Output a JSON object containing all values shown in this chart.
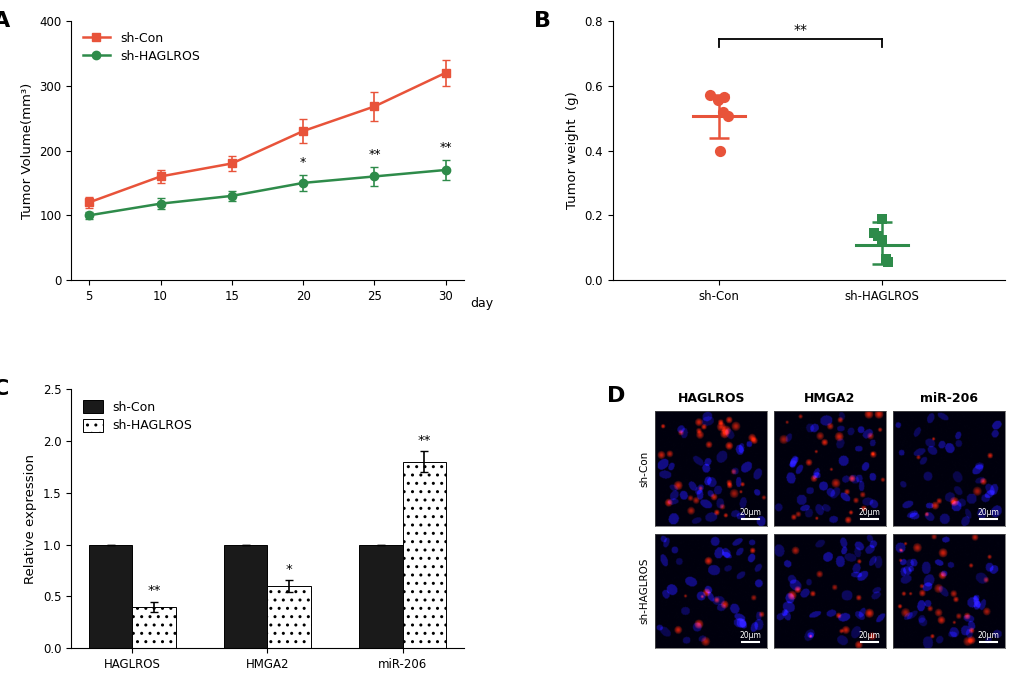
{
  "panel_A": {
    "days": [
      5,
      10,
      15,
      20,
      25,
      30
    ],
    "sh_con_mean": [
      120,
      160,
      180,
      230,
      268,
      320
    ],
    "sh_con_err": [
      8,
      10,
      12,
      18,
      22,
      20
    ],
    "sh_haglros_mean": [
      100,
      118,
      130,
      150,
      160,
      170
    ],
    "sh_haglros_err": [
      5,
      8,
      8,
      12,
      14,
      15
    ],
    "sig_days": [
      20,
      25,
      30
    ],
    "sig_labels": [
      "*",
      "**",
      "**"
    ],
    "ylabel": "Tumor Volume(mm³)",
    "ylim": [
      0,
      400
    ],
    "yticks": [
      0,
      100,
      200,
      300,
      400
    ],
    "color_con": "#E8533A",
    "color_haglros": "#2E8B4A",
    "legend_con": "sh-Con",
    "legend_haglros": "sh-HAGLROS"
  },
  "panel_B": {
    "sh_con_points": [
      0.57,
      0.565,
      0.555,
      0.52,
      0.505,
      0.4
    ],
    "sh_con_mean": 0.505,
    "sh_con_sem_lo": 0.065,
    "sh_con_sem_hi": 0.065,
    "sh_haglros_points": [
      0.19,
      0.145,
      0.135,
      0.125,
      0.065,
      0.055
    ],
    "sh_haglros_mean": 0.108,
    "sh_haglros_sem_lo": 0.058,
    "sh_haglros_sem_hi": 0.072,
    "ylabel": "Tumor weight  (g)",
    "ylim": [
      0.0,
      0.8
    ],
    "yticks": [
      0.0,
      0.2,
      0.4,
      0.6,
      0.8
    ],
    "color_con": "#E8533A",
    "color_haglros": "#2E8B4A",
    "sig_label": "**"
  },
  "panel_C": {
    "categories": [
      "HAGLROS",
      "HMGA2",
      "miR-206"
    ],
    "sh_con_values": [
      1.0,
      1.0,
      1.0
    ],
    "sh_haglros_values": [
      0.4,
      0.6,
      1.8
    ],
    "sh_con_err": [
      0.0,
      0.0,
      0.0
    ],
    "sh_haglros_err": [
      0.05,
      0.06,
      0.1
    ],
    "sig_labels": [
      "**",
      "*",
      "**"
    ],
    "ylabel": "Relative expression",
    "ylim": [
      0.0,
      2.5
    ],
    "yticks": [
      0.0,
      0.5,
      1.0,
      1.5,
      2.0,
      2.5
    ],
    "color_con": "#1a1a1a",
    "legend_con": "sh-Con",
    "legend_haglros": "sh-HAGLROS"
  },
  "panel_D": {
    "row_labels": [
      "sh-Con",
      "sh-HAGLROS"
    ],
    "col_labels": [
      "HAGLROS",
      "HMGA2",
      "miR-206"
    ],
    "scale_bar": "20μm"
  },
  "background_color": "#ffffff"
}
